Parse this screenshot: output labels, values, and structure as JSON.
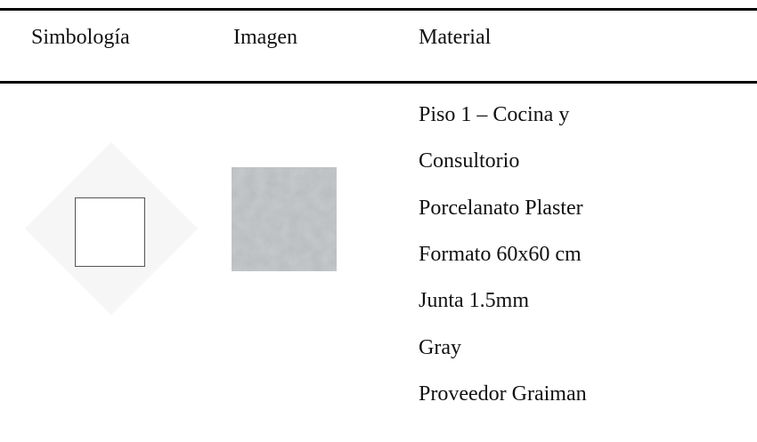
{
  "table": {
    "header": [
      "Simbología",
      "Imagen",
      "Material"
    ],
    "rows": [
      {
        "material": [
          "Piso 1 – Cocina y",
          "Consultorio",
          "Porcelanato Plaster",
          "Formato 60x60 cm",
          "Junta 1.5mm",
          "Gray",
          "Proveedor Graiman"
        ]
      }
    ]
  }
}
